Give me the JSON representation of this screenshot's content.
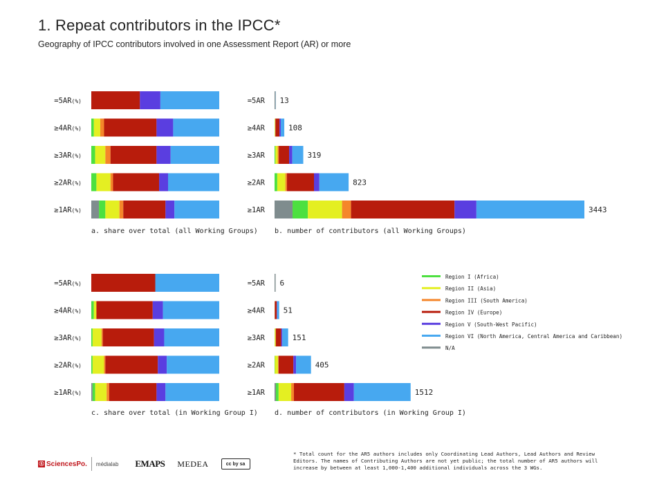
{
  "header": {
    "title": "1. Repeat contributors in the IPCC*",
    "subtitle": "Geography of IPCC contributors involved in one Assessment Report (AR) or more"
  },
  "legend": [
    {
      "label": "Region I (Africa)",
      "color": "#4de040"
    },
    {
      "label": "Region II (Asia)",
      "color": "#e4ef22"
    },
    {
      "label": "Region III (South America)",
      "color": "#f5862a"
    },
    {
      "label": "Region IV (Europe)",
      "color": "#b81c0c"
    },
    {
      "label": "Region V (South-West Pacific)",
      "color": "#5a3ee0"
    },
    {
      "label": "Region VI (North America, Central America and Caribbean)",
      "color": "#47a8f0"
    },
    {
      "label": "N/A",
      "color": "#7f8c8e"
    }
  ],
  "chart_data": [
    {
      "type": "bar",
      "stacked": "percent",
      "caption": "a. share over total (all Working Groups)",
      "categories": [
        "=5AR",
        "≥4AR",
        "≥3AR",
        "≥2AR",
        "≥1AR"
      ],
      "category_suffix": "(%)",
      "series": [
        {
          "name": "N/A",
          "values": [
            0,
            0,
            0,
            0,
            6
          ]
        },
        {
          "name": "Region I (Africa)",
          "values": [
            0,
            2,
            3,
            4,
            5
          ]
        },
        {
          "name": "Region II (Asia)",
          "values": [
            0,
            5,
            8,
            11,
            11
          ]
        },
        {
          "name": "Region III (South America)",
          "values": [
            0,
            3,
            4,
            2,
            3
          ]
        },
        {
          "name": "Region IV (Europe)",
          "values": [
            38,
            41,
            36,
            36,
            33
          ]
        },
        {
          "name": "Region V (South-West Pacific)",
          "values": [
            16,
            13,
            11,
            7,
            7
          ]
        },
        {
          "name": "Region VI (North America, Central America and Caribbean)",
          "values": [
            46,
            36,
            38,
            40,
            35
          ]
        }
      ]
    },
    {
      "type": "bar",
      "stacked": "absolute",
      "caption": "b. number of contributors (all Working Groups)",
      "categories": [
        "=5AR",
        "≥4AR",
        "≥3AR",
        "≥2AR",
        "≥1AR"
      ],
      "totals": [
        "13",
        "108",
        "319",
        "823",
        "3443"
      ],
      "series": [
        {
          "name": "N/A",
          "values": [
            0,
            0,
            0,
            0,
            200
          ]
        },
        {
          "name": "Region I (Africa)",
          "values": [
            0,
            2,
            10,
            30,
            170
          ]
        },
        {
          "name": "Region II (Asia)",
          "values": [
            0,
            5,
            25,
            90,
            380
          ]
        },
        {
          "name": "Region III (South America)",
          "values": [
            0,
            3,
            12,
            18,
            100
          ]
        },
        {
          "name": "Region IV (Europe)",
          "values": [
            5,
            45,
            115,
            300,
            1150
          ]
        },
        {
          "name": "Region V (South-West Pacific)",
          "values": [
            2,
            14,
            35,
            60,
            243
          ]
        },
        {
          "name": "Region VI (North America, Central America and Caribbean)",
          "values": [
            6,
            39,
            122,
            325,
            1200
          ]
        }
      ]
    },
    {
      "type": "bar",
      "stacked": "percent",
      "caption": "c. share over total (in Working Group I)",
      "categories": [
        "=5AR",
        "≥4AR",
        "≥3AR",
        "≥2AR",
        "≥1AR"
      ],
      "category_suffix": "(%)",
      "series": [
        {
          "name": "N/A",
          "values": [
            0,
            0,
            0,
            0,
            1
          ]
        },
        {
          "name": "Region I (Africa)",
          "values": [
            0,
            2,
            1,
            1,
            2
          ]
        },
        {
          "name": "Region II (Asia)",
          "values": [
            0,
            2,
            7,
            9,
            9
          ]
        },
        {
          "name": "Region III (South America)",
          "values": [
            0,
            0,
            1,
            1,
            2
          ]
        },
        {
          "name": "Region IV (Europe)",
          "values": [
            50,
            44,
            40,
            41,
            37
          ]
        },
        {
          "name": "Region V (South-West Pacific)",
          "values": [
            0,
            8,
            8,
            7,
            7
          ]
        },
        {
          "name": "Region VI (North America, Central America and Caribbean)",
          "values": [
            50,
            44,
            43,
            41,
            42
          ]
        }
      ]
    },
    {
      "type": "bar",
      "stacked": "absolute",
      "caption": "d. number of contributors (in Working Group I)",
      "categories": [
        "=5AR",
        "≥4AR",
        "≥3AR",
        "≥2AR",
        "≥1AR"
      ],
      "totals": [
        "6",
        "51",
        "151",
        "405",
        "1512"
      ],
      "series": [
        {
          "name": "N/A",
          "values": [
            0,
            0,
            0,
            0,
            15
          ]
        },
        {
          "name": "Region I (Africa)",
          "values": [
            0,
            1,
            2,
            4,
            30
          ]
        },
        {
          "name": "Region II (Asia)",
          "values": [
            0,
            1,
            10,
            36,
            140
          ]
        },
        {
          "name": "Region III (South America)",
          "values": [
            0,
            0,
            2,
            4,
            30
          ]
        },
        {
          "name": "Region IV (Europe)",
          "values": [
            3,
            22,
            60,
            165,
            560
          ]
        },
        {
          "name": "Region V (South-West Pacific)",
          "values": [
            0,
            4,
            12,
            30,
            107
          ]
        },
        {
          "name": "Region VI (North America, Central America and Caribbean)",
          "values": [
            3,
            23,
            65,
            166,
            630
          ]
        }
      ]
    }
  ],
  "footnote": "* Total count for the AR5 authors includes only Coordinating Lead Authors, Lead Authors and Review Editors. The names of Contributing Authors are not yet public; the total number of AR5 authors will increase by between at least 1,000-1,400 additional individuals across the 3 WGs.",
  "logos": {
    "sciencespo": "SciencesPo.",
    "medialab": "médialab",
    "emaps": "EMAPS",
    "medea": "MEDEA",
    "cc": "cc by sa"
  }
}
